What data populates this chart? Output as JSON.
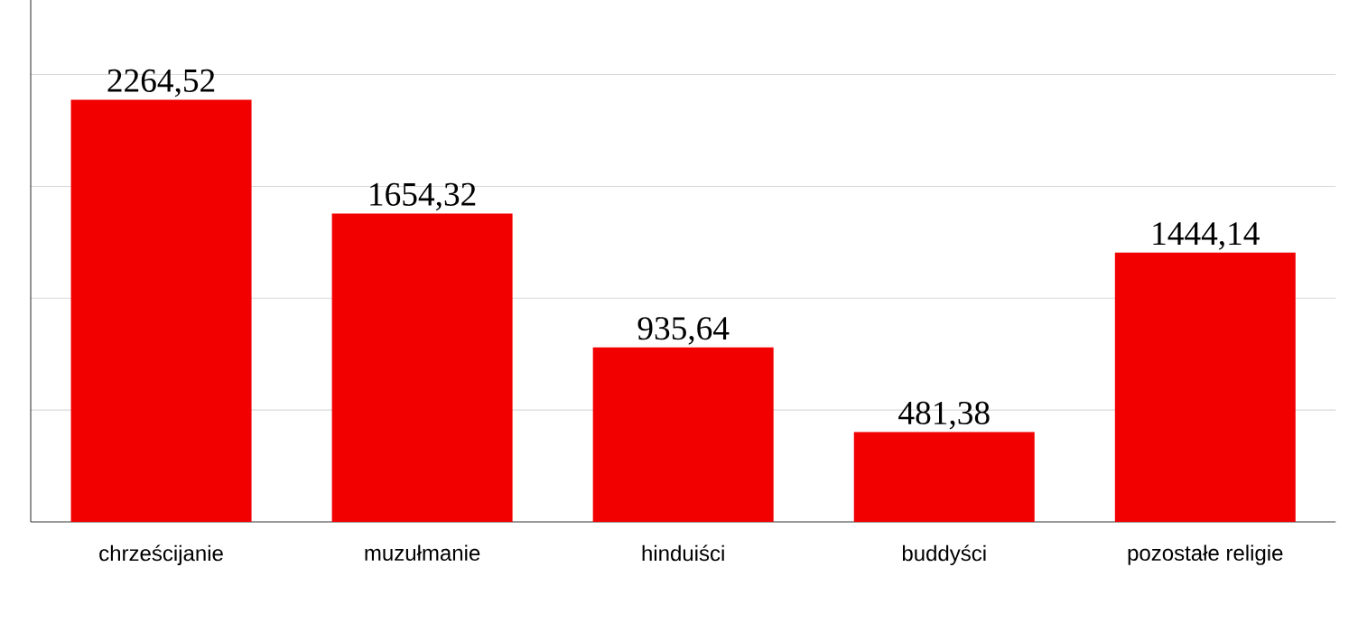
{
  "chart_data": {
    "type": "bar",
    "categories": [
      "chrześcijanie",
      "muzułmanie",
      "hinduiści",
      "buddyści",
      "pozostałe religie"
    ],
    "values": [
      2264.52,
      1654.32,
      935.64,
      481.38,
      1444.14
    ],
    "color": "#f20000",
    "ylim": [
      0,
      2800
    ],
    "yticks": [
      {
        "value": 600,
        "label": null
      },
      {
        "value": 1200,
        "label": null
      },
      {
        "value": 1800,
        "label": null
      },
      {
        "value": 2400,
        "label": null
      }
    ],
    "grid": "y",
    "value_labels": [
      "2264,52",
      "1654,32",
      "935,64",
      "481,38",
      "1444,14"
    ]
  }
}
